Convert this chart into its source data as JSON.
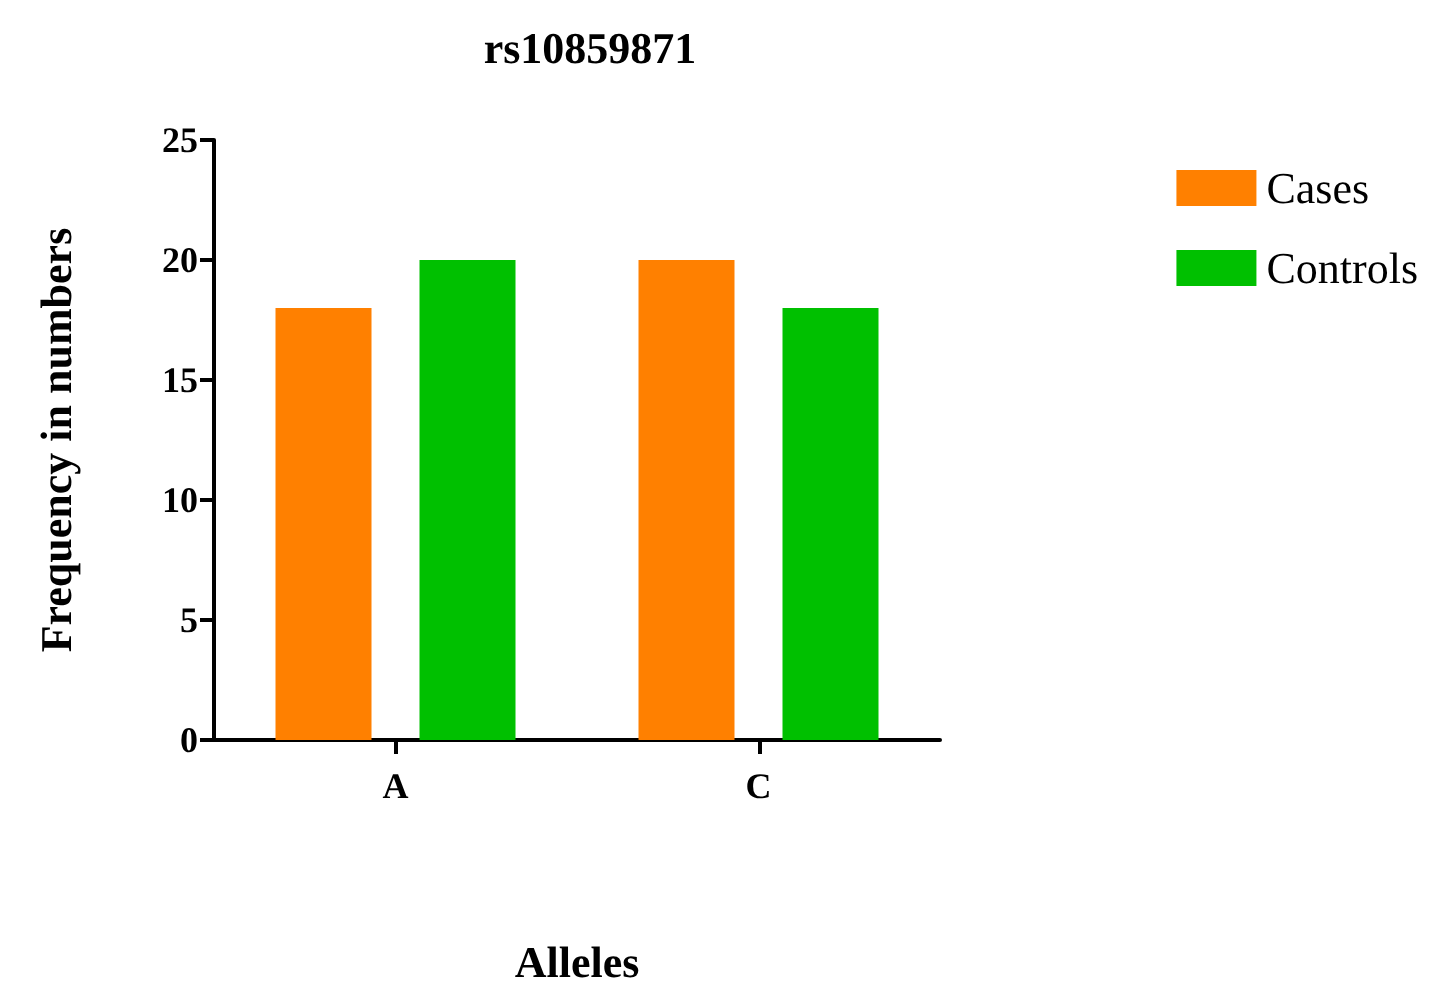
{
  "chart_data": {
    "type": "bar",
    "title": "rs10859871",
    "xlabel": "Alleles",
    "ylabel": "Frequency in numbers",
    "categories": [
      "A",
      "C"
    ],
    "series": [
      {
        "name": "Cases",
        "color": "#ff8000",
        "values": [
          18,
          20
        ]
      },
      {
        "name": "Controls",
        "color": "#00c000",
        "values": [
          20,
          18
        ]
      }
    ],
    "ylim": [
      0,
      25
    ],
    "yticks": [
      0,
      5,
      10,
      15,
      20,
      25
    ],
    "grid": false,
    "legend": "top right"
  }
}
